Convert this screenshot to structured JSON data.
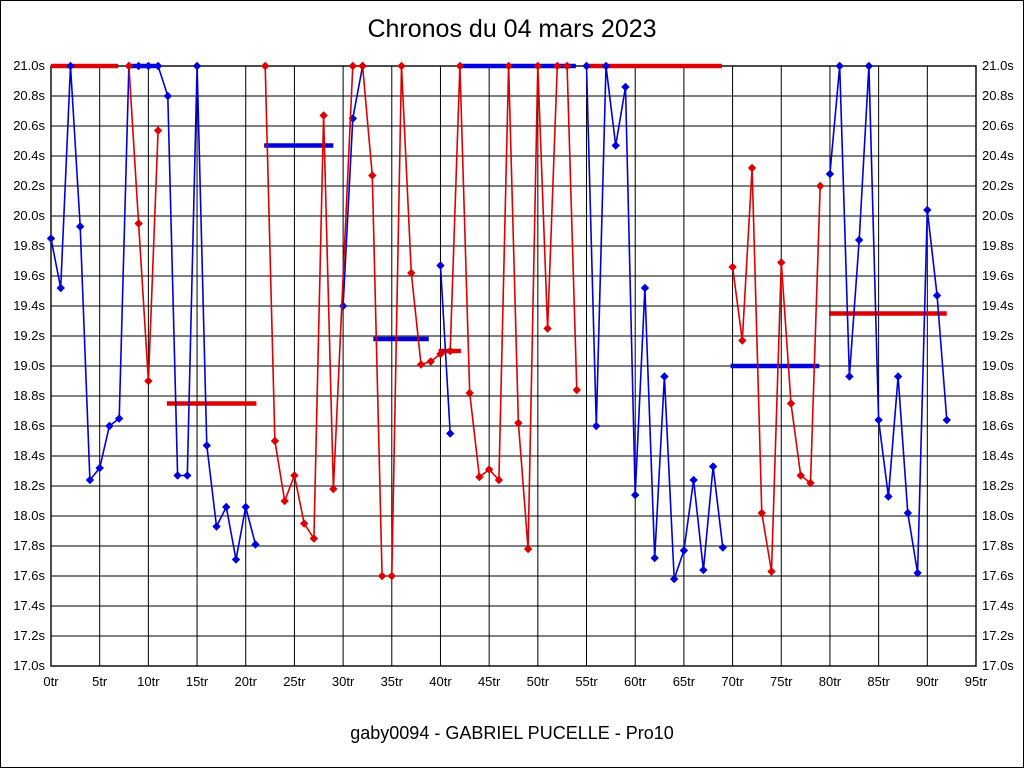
{
  "title": "Chronos du 04 mars 2023",
  "footer": "gaby0094 - GABRIEL PUCELLE - Pro10",
  "chart_data": {
    "type": "line",
    "title": "Chronos du 04 mars 2023",
    "subtitle": "gaby0094 - GABRIEL PUCELLE - Pro10",
    "xlabel": "",
    "ylabel": "",
    "xlim": [
      0,
      95
    ],
    "ylim": [
      17.0,
      21.0
    ],
    "y_tick_step": 0.2,
    "grid": true,
    "legend": "none",
    "x_ticks": [
      "0tr",
      "5tr",
      "10tr",
      "15tr",
      "20tr",
      "25tr",
      "30tr",
      "35tr",
      "40tr",
      "45tr",
      "50tr",
      "55tr",
      "60tr",
      "65tr",
      "70tr",
      "75tr",
      "80tr",
      "85tr",
      "90tr",
      "95tr"
    ],
    "y_ticks": [
      "21.0s",
      "20.8s",
      "20.6s",
      "20.4s",
      "20.2s",
      "20.0s",
      "19.8s",
      "19.6s",
      "19.4s",
      "19.2s",
      "19.0s",
      "18.8s",
      "18.6s",
      "18.4s",
      "18.2s",
      "18.0s",
      "17.8s",
      "17.6s",
      "17.4s",
      "17.2s",
      "17.0s"
    ],
    "colors": {
      "blue_series": "#0000dd",
      "red_series": "#dd0000",
      "grid": "#000000"
    },
    "series": [
      {
        "name": "rider-blue",
        "color": "#0000dd",
        "points": [
          [
            0,
            19.85
          ],
          [
            1,
            19.52
          ],
          [
            2,
            21.0
          ],
          [
            3,
            19.93
          ],
          [
            4,
            18.24
          ],
          [
            5,
            18.32
          ],
          [
            6,
            18.6
          ],
          [
            7,
            18.65
          ],
          [
            8,
            21.0
          ],
          [
            9,
            21.0
          ],
          [
            10,
            21.0
          ],
          [
            11,
            21.0
          ],
          [
            12,
            20.8
          ],
          [
            13,
            18.27
          ],
          [
            14,
            18.27
          ],
          [
            15,
            21.0
          ],
          [
            16,
            18.47
          ],
          [
            17,
            17.93
          ],
          [
            18,
            18.06
          ],
          [
            19,
            17.71
          ],
          [
            20,
            18.06
          ],
          [
            21,
            17.81
          ],
          [
            30,
            19.4
          ],
          [
            31,
            20.65
          ],
          [
            32,
            21.0
          ],
          [
            40,
            19.67
          ],
          [
            41,
            18.55
          ],
          [
            55,
            21.0
          ],
          [
            56,
            18.6
          ],
          [
            57,
            21.0
          ],
          [
            58,
            20.47
          ],
          [
            59,
            20.86
          ],
          [
            60,
            18.14
          ],
          [
            61,
            19.52
          ],
          [
            62,
            17.72
          ],
          [
            63,
            18.93
          ],
          [
            64,
            17.58
          ],
          [
            65,
            17.77
          ],
          [
            66,
            18.24
          ],
          [
            67,
            17.64
          ],
          [
            68,
            18.33
          ],
          [
            69,
            17.79
          ],
          [
            80,
            20.28
          ],
          [
            81,
            21.0
          ],
          [
            82,
            18.93
          ],
          [
            83,
            19.84
          ],
          [
            84,
            21.0
          ],
          [
            85,
            18.64
          ],
          [
            86,
            18.13
          ],
          [
            87,
            18.93
          ],
          [
            88,
            18.02
          ],
          [
            89,
            17.62
          ],
          [
            90,
            20.04
          ],
          [
            91,
            19.47
          ],
          [
            92,
            18.64
          ]
        ]
      },
      {
        "name": "rider-red",
        "color": "#dd0000",
        "points": [
          [
            8,
            21.0
          ],
          [
            9,
            19.95
          ],
          [
            10,
            18.9
          ],
          [
            11,
            20.57
          ],
          [
            22,
            21.0
          ],
          [
            23,
            18.5
          ],
          [
            24,
            18.1
          ],
          [
            25,
            18.27
          ],
          [
            26,
            17.95
          ],
          [
            27,
            17.85
          ],
          [
            28,
            20.67
          ],
          [
            29,
            18.18
          ],
          [
            31,
            21.0
          ],
          [
            32,
            21.0
          ],
          [
            33,
            20.27
          ],
          [
            34,
            17.6
          ],
          [
            35,
            17.6
          ],
          [
            36,
            21.0
          ],
          [
            37,
            19.62
          ],
          [
            38,
            19.01
          ],
          [
            39,
            19.03
          ],
          [
            40,
            19.08
          ],
          [
            41,
            19.1
          ],
          [
            42,
            21.0
          ],
          [
            43,
            18.82
          ],
          [
            44,
            18.26
          ],
          [
            45,
            18.31
          ],
          [
            46,
            18.24
          ],
          [
            47,
            21.0
          ],
          [
            48,
            18.62
          ],
          [
            49,
            17.78
          ],
          [
            50,
            21.0
          ],
          [
            51,
            19.25
          ],
          [
            52,
            21.0
          ],
          [
            53,
            21.0
          ],
          [
            54,
            18.84
          ],
          [
            70,
            19.66
          ],
          [
            71,
            19.17
          ],
          [
            72,
            20.32
          ],
          [
            73,
            18.02
          ],
          [
            74,
            17.63
          ],
          [
            75,
            19.69
          ],
          [
            76,
            18.75
          ],
          [
            77,
            18.27
          ],
          [
            78,
            18.22
          ],
          [
            79,
            20.2
          ]
        ]
      }
    ],
    "stint_average_bars": [
      {
        "color": "#dd0000",
        "y": 21.0,
        "x1": 0.0,
        "x2": 6.9
      },
      {
        "color": "#0000dd",
        "y": 21.0,
        "x1": 8.0,
        "x2": 11.1
      },
      {
        "color": "#dd0000",
        "y": 18.75,
        "x1": 11.9,
        "x2": 21.1
      },
      {
        "color": "#0000dd",
        "y": 20.47,
        "x1": 21.9,
        "x2": 29.0
      },
      {
        "color": "#0000dd",
        "y": 19.18,
        "x1": 33.1,
        "x2": 38.8
      },
      {
        "color": "#dd0000",
        "y": 19.1,
        "x1": 39.8,
        "x2": 42.1
      },
      {
        "color": "#0000dd",
        "y": 21.0,
        "x1": 42.0,
        "x2": 53.9
      },
      {
        "color": "#dd0000",
        "y": 21.0,
        "x1": 55.2,
        "x2": 68.9
      },
      {
        "color": "#0000dd",
        "y": 19.0,
        "x1": 69.8,
        "x2": 78.9
      },
      {
        "color": "#dd0000",
        "y": 19.35,
        "x1": 79.9,
        "x2": 92.0
      }
    ]
  }
}
